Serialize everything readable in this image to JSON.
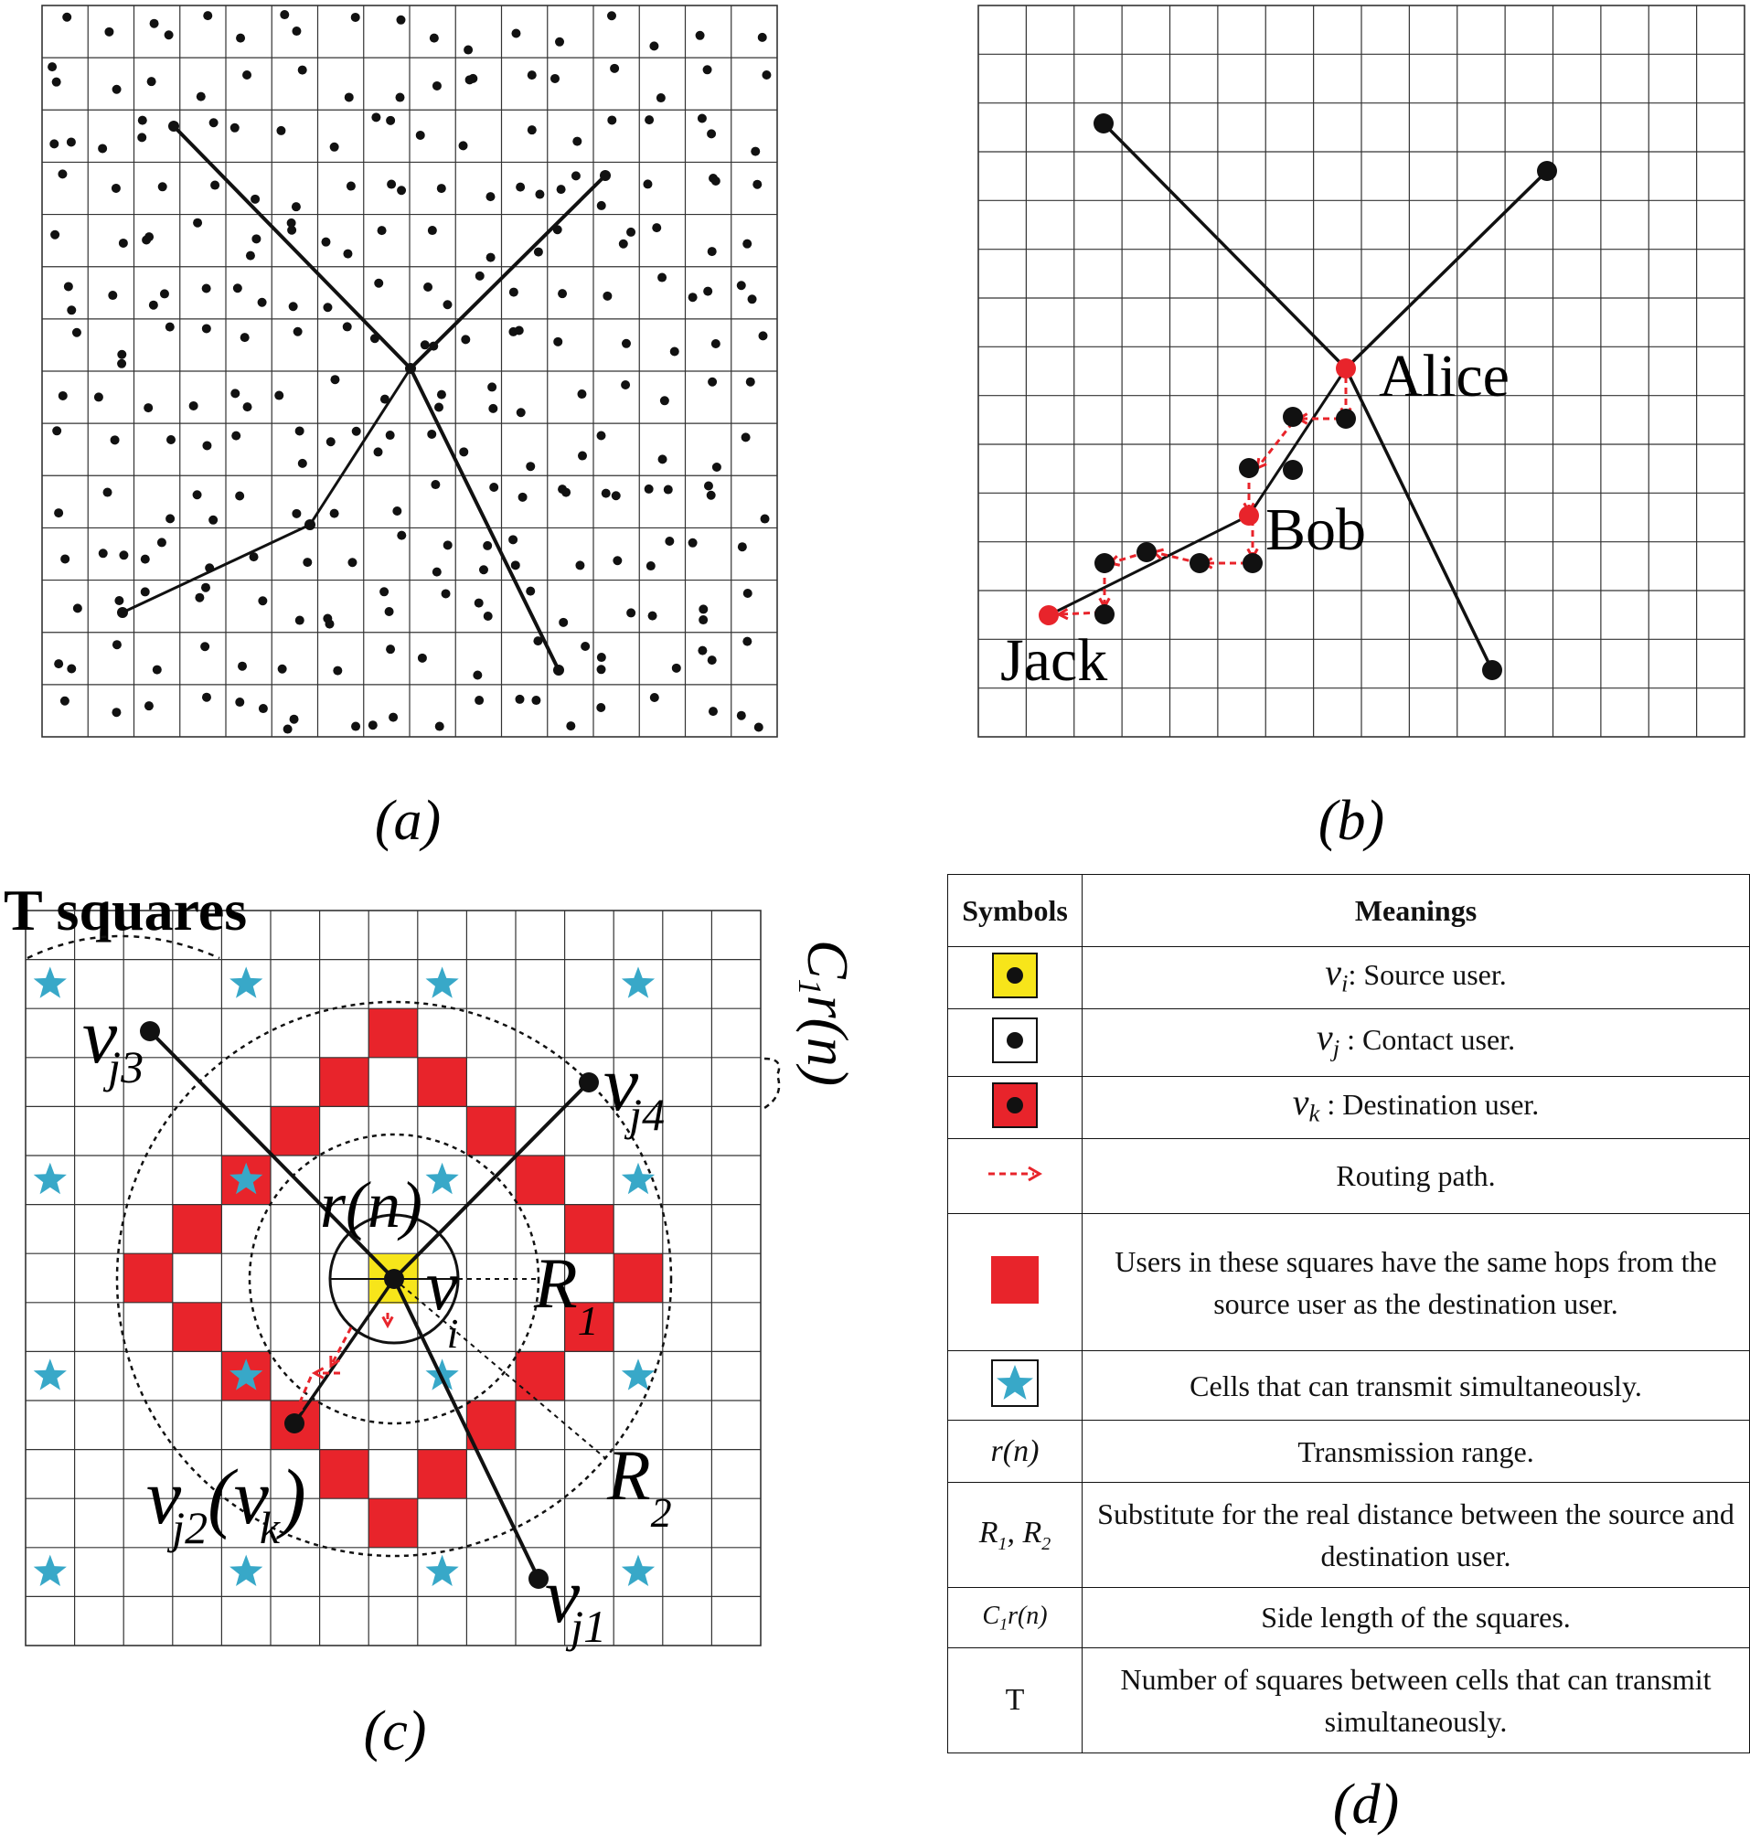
{
  "colors": {
    "grid": "#333333",
    "dot": "#111111",
    "red": "#e8242b",
    "yellow": "#f7e51a",
    "star": "#38a8c8",
    "route": "#e8242b"
  },
  "panel_a": {
    "caption": "(a)"
  },
  "panel_b": {
    "caption": "(b)",
    "labels": {
      "alice": "Alice",
      "bob": "Bob",
      "jack": "Jack"
    }
  },
  "panel_c": {
    "caption": "(c)",
    "labels": {
      "t_squares": "T squares",
      "rn": "r(n)",
      "c1rn": "C",
      "c1rn_sub": "1",
      "c1rn_tail": "r(n)",
      "vi": "v",
      "vi_sub": "i",
      "r1": "R",
      "r1_sub": "1",
      "r2": "R",
      "r2_sub": "2",
      "vj1": "v",
      "vj1_sub": "j1",
      "vj2": "v",
      "vj2_sub": "j2",
      "vk_open": "(v",
      "vk_sub": "k",
      "vk_close": ")",
      "vj3": "v",
      "vj3_sub": "j3",
      "vj4": "v",
      "vj4_sub": "j4"
    }
  },
  "panel_d": {
    "caption": "(d)",
    "header": {
      "symbols": "Symbols",
      "meanings": "Meanings"
    },
    "rows": [
      {
        "symbol": "yellow-square-dot",
        "meaning_var": "v",
        "meaning_sub": "i",
        "meaning": ": Source user."
      },
      {
        "symbol": "white-square-dot",
        "meaning_var": "v",
        "meaning_sub": "j",
        "meaning": " : Contact user."
      },
      {
        "symbol": "red-square-dot",
        "meaning_var": "v",
        "meaning_sub": "k",
        "meaning": " : Destination  user."
      },
      {
        "symbol": "red-dashed-arrow",
        "meaning": "Routing path."
      },
      {
        "symbol": "red-square",
        "meaning": "Users in these squares have the same hops from the source user as the destination user."
      },
      {
        "symbol": "blue-star-square",
        "meaning": "Cells that can transmit simultaneously."
      },
      {
        "symbol_text": "r(n)",
        "meaning": "Transmission range."
      },
      {
        "symbol_text": "R",
        "symbol_sub": "1",
        "symbol_text2": ", R",
        "symbol_sub2": "2",
        "meaning": "Substitute for the real distance between the source and destination user."
      },
      {
        "symbol_text": "C",
        "symbol_sub": "1",
        "symbol_text2": "r(n)",
        "meaning": "Side length of the squares."
      },
      {
        "symbol_text": "T",
        "meaning": "Number of squares between cells that can transmit simultaneously."
      }
    ]
  }
}
